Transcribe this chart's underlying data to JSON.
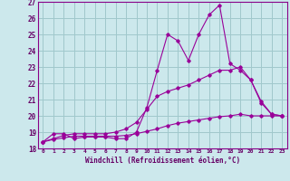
{
  "xlabel": "Windchill (Refroidissement éolien,°C)",
  "xlim": [
    -0.5,
    23.5
  ],
  "ylim": [
    18,
    27
  ],
  "yticks": [
    18,
    19,
    20,
    21,
    22,
    23,
    24,
    25,
    26,
    27
  ],
  "xticks": [
    0,
    1,
    2,
    3,
    4,
    5,
    6,
    7,
    8,
    9,
    10,
    11,
    12,
    13,
    14,
    15,
    16,
    17,
    18,
    19,
    20,
    21,
    22,
    23
  ],
  "bg_color": "#cce8ec",
  "grid_color": "#a0c8cc",
  "line_color": "#990099",
  "series": [
    {
      "x": [
        0,
        1,
        2,
        3,
        4,
        5,
        6,
        7,
        8,
        9,
        10,
        11,
        12,
        13,
        14,
        15,
        16,
        17,
        18,
        19,
        20,
        21,
        22,
        23
      ],
      "y": [
        18.4,
        18.9,
        18.9,
        18.6,
        18.7,
        18.7,
        18.7,
        18.6,
        18.6,
        19.0,
        20.5,
        22.8,
        25.0,
        24.6,
        23.4,
        25.0,
        26.2,
        26.8,
        23.2,
        22.8,
        22.2,
        20.8,
        20.1,
        20.0
      ]
    },
    {
      "x": [
        0,
        1,
        2,
        3,
        4,
        5,
        6,
        7,
        8,
        9,
        10,
        11,
        12,
        13,
        14,
        15,
        16,
        17,
        18,
        19,
        20,
        21,
        22,
        23
      ],
      "y": [
        18.4,
        18.6,
        18.8,
        18.9,
        18.9,
        18.9,
        18.9,
        19.0,
        19.2,
        19.6,
        20.4,
        21.2,
        21.5,
        21.7,
        21.9,
        22.2,
        22.5,
        22.8,
        22.8,
        23.0,
        22.2,
        20.9,
        20.1,
        20.0
      ]
    },
    {
      "x": [
        0,
        1,
        2,
        3,
        4,
        5,
        6,
        7,
        8,
        9,
        10,
        11,
        12,
        13,
        14,
        15,
        16,
        17,
        18,
        19,
        20,
        21,
        22,
        23
      ],
      "y": [
        18.4,
        18.55,
        18.65,
        18.75,
        18.75,
        18.75,
        18.75,
        18.75,
        18.8,
        18.9,
        19.05,
        19.2,
        19.4,
        19.55,
        19.65,
        19.75,
        19.85,
        19.95,
        20.0,
        20.1,
        20.0,
        20.0,
        20.0,
        20.0
      ]
    }
  ]
}
